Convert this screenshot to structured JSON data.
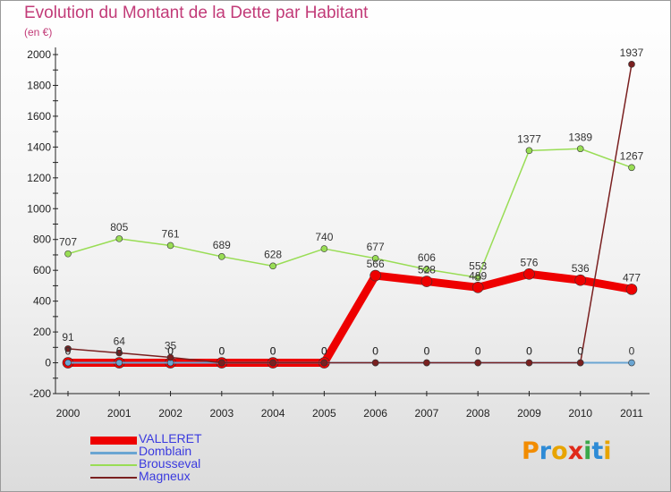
{
  "title": "Evolution du Montant de la Dette par Habitant",
  "subtitle": "(en €)",
  "logo": {
    "text": "Proxiti",
    "colors": [
      "#f28c00",
      "#2e8bd6",
      "#e8a400",
      "#e02a1a",
      "#3aa84a",
      "#2e8bd6",
      "#e8a400"
    ]
  },
  "chart_data": {
    "type": "line",
    "title": "Evolution du Montant de la Dette par Habitant",
    "subtitle": "(en €)",
    "xlabel": "",
    "ylabel": "",
    "ylim": [
      -200,
      2000
    ],
    "yticks": [
      -200,
      0,
      200,
      400,
      600,
      800,
      1000,
      1200,
      1400,
      1600,
      1800,
      2000
    ],
    "grid": false,
    "legend_position": "bottom-left",
    "categories": [
      "2000",
      "2001",
      "2002",
      "2003",
      "2004",
      "2005",
      "2006",
      "2007",
      "2008",
      "2009",
      "2010",
      "2011"
    ],
    "series": [
      {
        "name": "VALLERET",
        "color": "#ee0000",
        "values": [
          0,
          0,
          0,
          0,
          0,
          0,
          566,
          528,
          489,
          576,
          536,
          477
        ]
      },
      {
        "name": "Domblain",
        "color": "#6aa5d2",
        "values": [
          0,
          0,
          0,
          0,
          0,
          0,
          0,
          0,
          0,
          0,
          0,
          0
        ]
      },
      {
        "name": "Brousseval",
        "color": "#99dd55",
        "values": [
          707,
          805,
          761,
          689,
          628,
          740,
          677,
          606,
          553,
          1377,
          1389,
          1267
        ]
      },
      {
        "name": "Magneux",
        "color": "#7a2020",
        "values": [
          91,
          64,
          35,
          0,
          0,
          0,
          0,
          0,
          0,
          0,
          0,
          1937
        ]
      }
    ]
  }
}
